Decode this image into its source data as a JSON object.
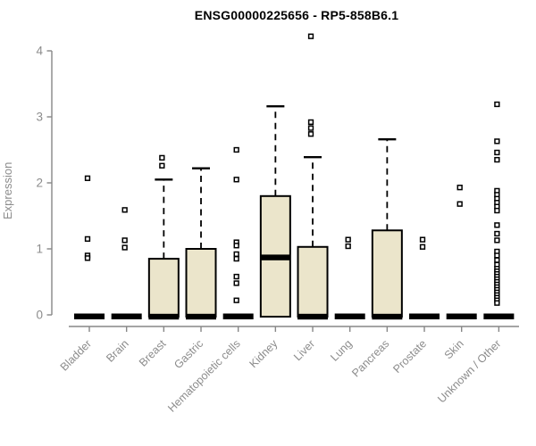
{
  "chart_data": {
    "type": "boxplot",
    "title": "ENSG00000225656 - RP5-858B6.1",
    "ylabel": "Expression",
    "xlabel": "",
    "ylim": [
      0,
      4
    ],
    "yticks": [
      0,
      1,
      2,
      3,
      4
    ],
    "grid": false,
    "legend": "none",
    "categories": [
      "Bladder",
      "Brain",
      "Breast",
      "Gastric",
      "Hematopoietic cells",
      "Kidney",
      "Liver",
      "Lung",
      "Pancreas",
      "Prostate",
      "Skin",
      "Unknown / Other"
    ],
    "boxes": [
      {
        "name": "Bladder",
        "q1": 0,
        "median": 0,
        "q3": 0,
        "whisker_low": 0,
        "whisker_high": 0,
        "outliers": [
          2.07,
          1.15,
          0.9,
          0.86
        ]
      },
      {
        "name": "Brain",
        "q1": 0,
        "median": 0,
        "q3": 0,
        "whisker_low": 0,
        "whisker_high": 0,
        "outliers": [
          1.59,
          1.13,
          1.02
        ]
      },
      {
        "name": "Breast",
        "q1": 0,
        "median": 0,
        "q3": 0.85,
        "whisker_low": 0,
        "whisker_high": 2.05,
        "outliers": [
          2.38,
          2.26
        ]
      },
      {
        "name": "Gastric",
        "q1": 0,
        "median": 0,
        "q3": 1.0,
        "whisker_low": 0,
        "whisker_high": 2.22,
        "outliers": []
      },
      {
        "name": "Hematopoietic cells",
        "q1": 0,
        "median": 0,
        "q3": 0,
        "whisker_low": 0,
        "whisker_high": 0,
        "outliers": [
          2.5,
          2.05,
          1.1,
          1.05,
          0.92,
          0.85,
          0.58,
          0.48,
          0.22
        ]
      },
      {
        "name": "Kidney",
        "q1": 0,
        "median": 0.87,
        "q3": 1.8,
        "whisker_low": 0,
        "whisker_high": 3.16,
        "outliers": []
      },
      {
        "name": "Liver",
        "q1": 0,
        "median": 0,
        "q3": 1.03,
        "whisker_low": 0,
        "whisker_high": 2.39,
        "outliers": [
          4.22,
          2.92,
          2.83,
          2.74
        ]
      },
      {
        "name": "Lung",
        "q1": 0,
        "median": 0,
        "q3": 0,
        "whisker_low": 0,
        "whisker_high": 0,
        "outliers": [
          1.14,
          1.04
        ]
      },
      {
        "name": "Pancreas",
        "q1": 0,
        "median": 0,
        "q3": 1.28,
        "whisker_low": 0,
        "whisker_high": 2.66,
        "outliers": []
      },
      {
        "name": "Prostate",
        "q1": 0,
        "median": 0,
        "q3": 0,
        "whisker_low": 0,
        "whisker_high": 0,
        "outliers": [
          1.14,
          1.03
        ]
      },
      {
        "name": "Skin",
        "q1": 0,
        "median": 0,
        "q3": 0,
        "whisker_low": 0,
        "whisker_high": 0,
        "outliers": [
          1.93,
          1.68
        ]
      },
      {
        "name": "Unknown / Other",
        "q1": 0,
        "median": 0,
        "q3": 0,
        "whisker_low": 0,
        "whisker_high": 0,
        "outliers": [
          3.19,
          2.63,
          2.46,
          2.35,
          1.88,
          1.82,
          1.76,
          1.7,
          1.64,
          1.58,
          1.36,
          1.23,
          1.13,
          0.96,
          0.9,
          0.83,
          0.76,
          0.7,
          0.66,
          0.62,
          0.58,
          0.54,
          0.5,
          0.46,
          0.42,
          0.38,
          0.34,
          0.3,
          0.26,
          0.22,
          0.18
        ]
      }
    ],
    "colors": {
      "box_fill": "#EBE5CB",
      "box_border": "#000000",
      "median": "#000000",
      "whisker": "#000000",
      "outlier_stroke": "#000000",
      "outlier_fill": "#ffffff",
      "axis_line": "#878787",
      "tick_label": "#8c8c8c",
      "title": "#000000",
      "background": "#ffffff"
    }
  }
}
